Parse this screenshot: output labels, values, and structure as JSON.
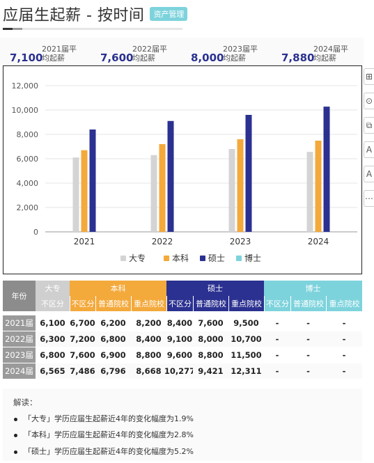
{
  "header": {
    "title": "应届生起薪 - 按时间",
    "tag": "资产管理"
  },
  "stats": [
    {
      "value": "7,100",
      "label": "2021届平均起薪"
    },
    {
      "value": "7,600",
      "label": "2022届平均起薪"
    },
    {
      "value": "8,000",
      "label": "2023届平均起薪"
    },
    {
      "value": "7,880",
      "label": "2024届平均起薪"
    }
  ],
  "colors": {
    "dazhuan": "#d4d4d4",
    "benke": "#f4a93b",
    "shuoshi": "#2b3190",
    "boshi": "#7dd3dc",
    "accent": "#2b3190"
  },
  "chart_data": {
    "type": "bar",
    "categories": [
      "2021",
      "2022",
      "2023",
      "2024"
    ],
    "series": [
      {
        "name": "大专",
        "values": [
          6100,
          6300,
          6800,
          6565
        ]
      },
      {
        "name": "本科",
        "values": [
          6700,
          7200,
          7600,
          7486
        ]
      },
      {
        "name": "硕士",
        "values": [
          8400,
          9100,
          9600,
          10277
        ]
      },
      {
        "name": "博士",
        "values": [
          null,
          null,
          null,
          null
        ]
      }
    ],
    "yticks": [
      "0",
      "2,000",
      "4,000",
      "6,000",
      "8,000",
      "10,000",
      "12,000"
    ],
    "ylim": [
      0,
      12000
    ],
    "legend": "bottom",
    "grid": true
  },
  "toolbar": [
    "⊞",
    "⊙",
    "⧉",
    "A",
    "A",
    "⋯"
  ],
  "table": {
    "corner": "年份",
    "groups": [
      "大专",
      "本科",
      "硕士",
      "博士"
    ],
    "subheaders": [
      "不区分",
      "不区分",
      "普通院校",
      "重点院校",
      "不区分",
      "普通院校",
      "重点院校",
      "不区分",
      "普通院校",
      "重点院校"
    ],
    "rows": [
      {
        "year": "2021届",
        "cells": [
          "6,100",
          "6,700",
          "6,200",
          "8,200",
          "8,400",
          "7,600",
          "9,500",
          "-",
          "-",
          "-"
        ]
      },
      {
        "year": "2022届",
        "cells": [
          "6,300",
          "7,200",
          "6,800",
          "8,400",
          "9,100",
          "8,000",
          "10,700",
          "-",
          "-",
          "-"
        ]
      },
      {
        "year": "2023届",
        "cells": [
          "6,800",
          "7,600",
          "6,900",
          "8,800",
          "9,600",
          "8,800",
          "11,500",
          "-",
          "-",
          "-"
        ]
      },
      {
        "year": "2024届",
        "cells": [
          "6,565",
          "7,486",
          "6,796",
          "8,668",
          "10,277",
          "9,421",
          "12,311",
          "-",
          "-",
          "-"
        ]
      }
    ]
  },
  "notes": {
    "heading": "解读：",
    "items": [
      "「大专」学历应届生起薪近4年的变化幅度为1.9%",
      "「本科」学历应届生起薪近4年的变化幅度为2.8%",
      "「硕士」学历应届生起薪近4年的变化幅度为5.2%"
    ]
  }
}
